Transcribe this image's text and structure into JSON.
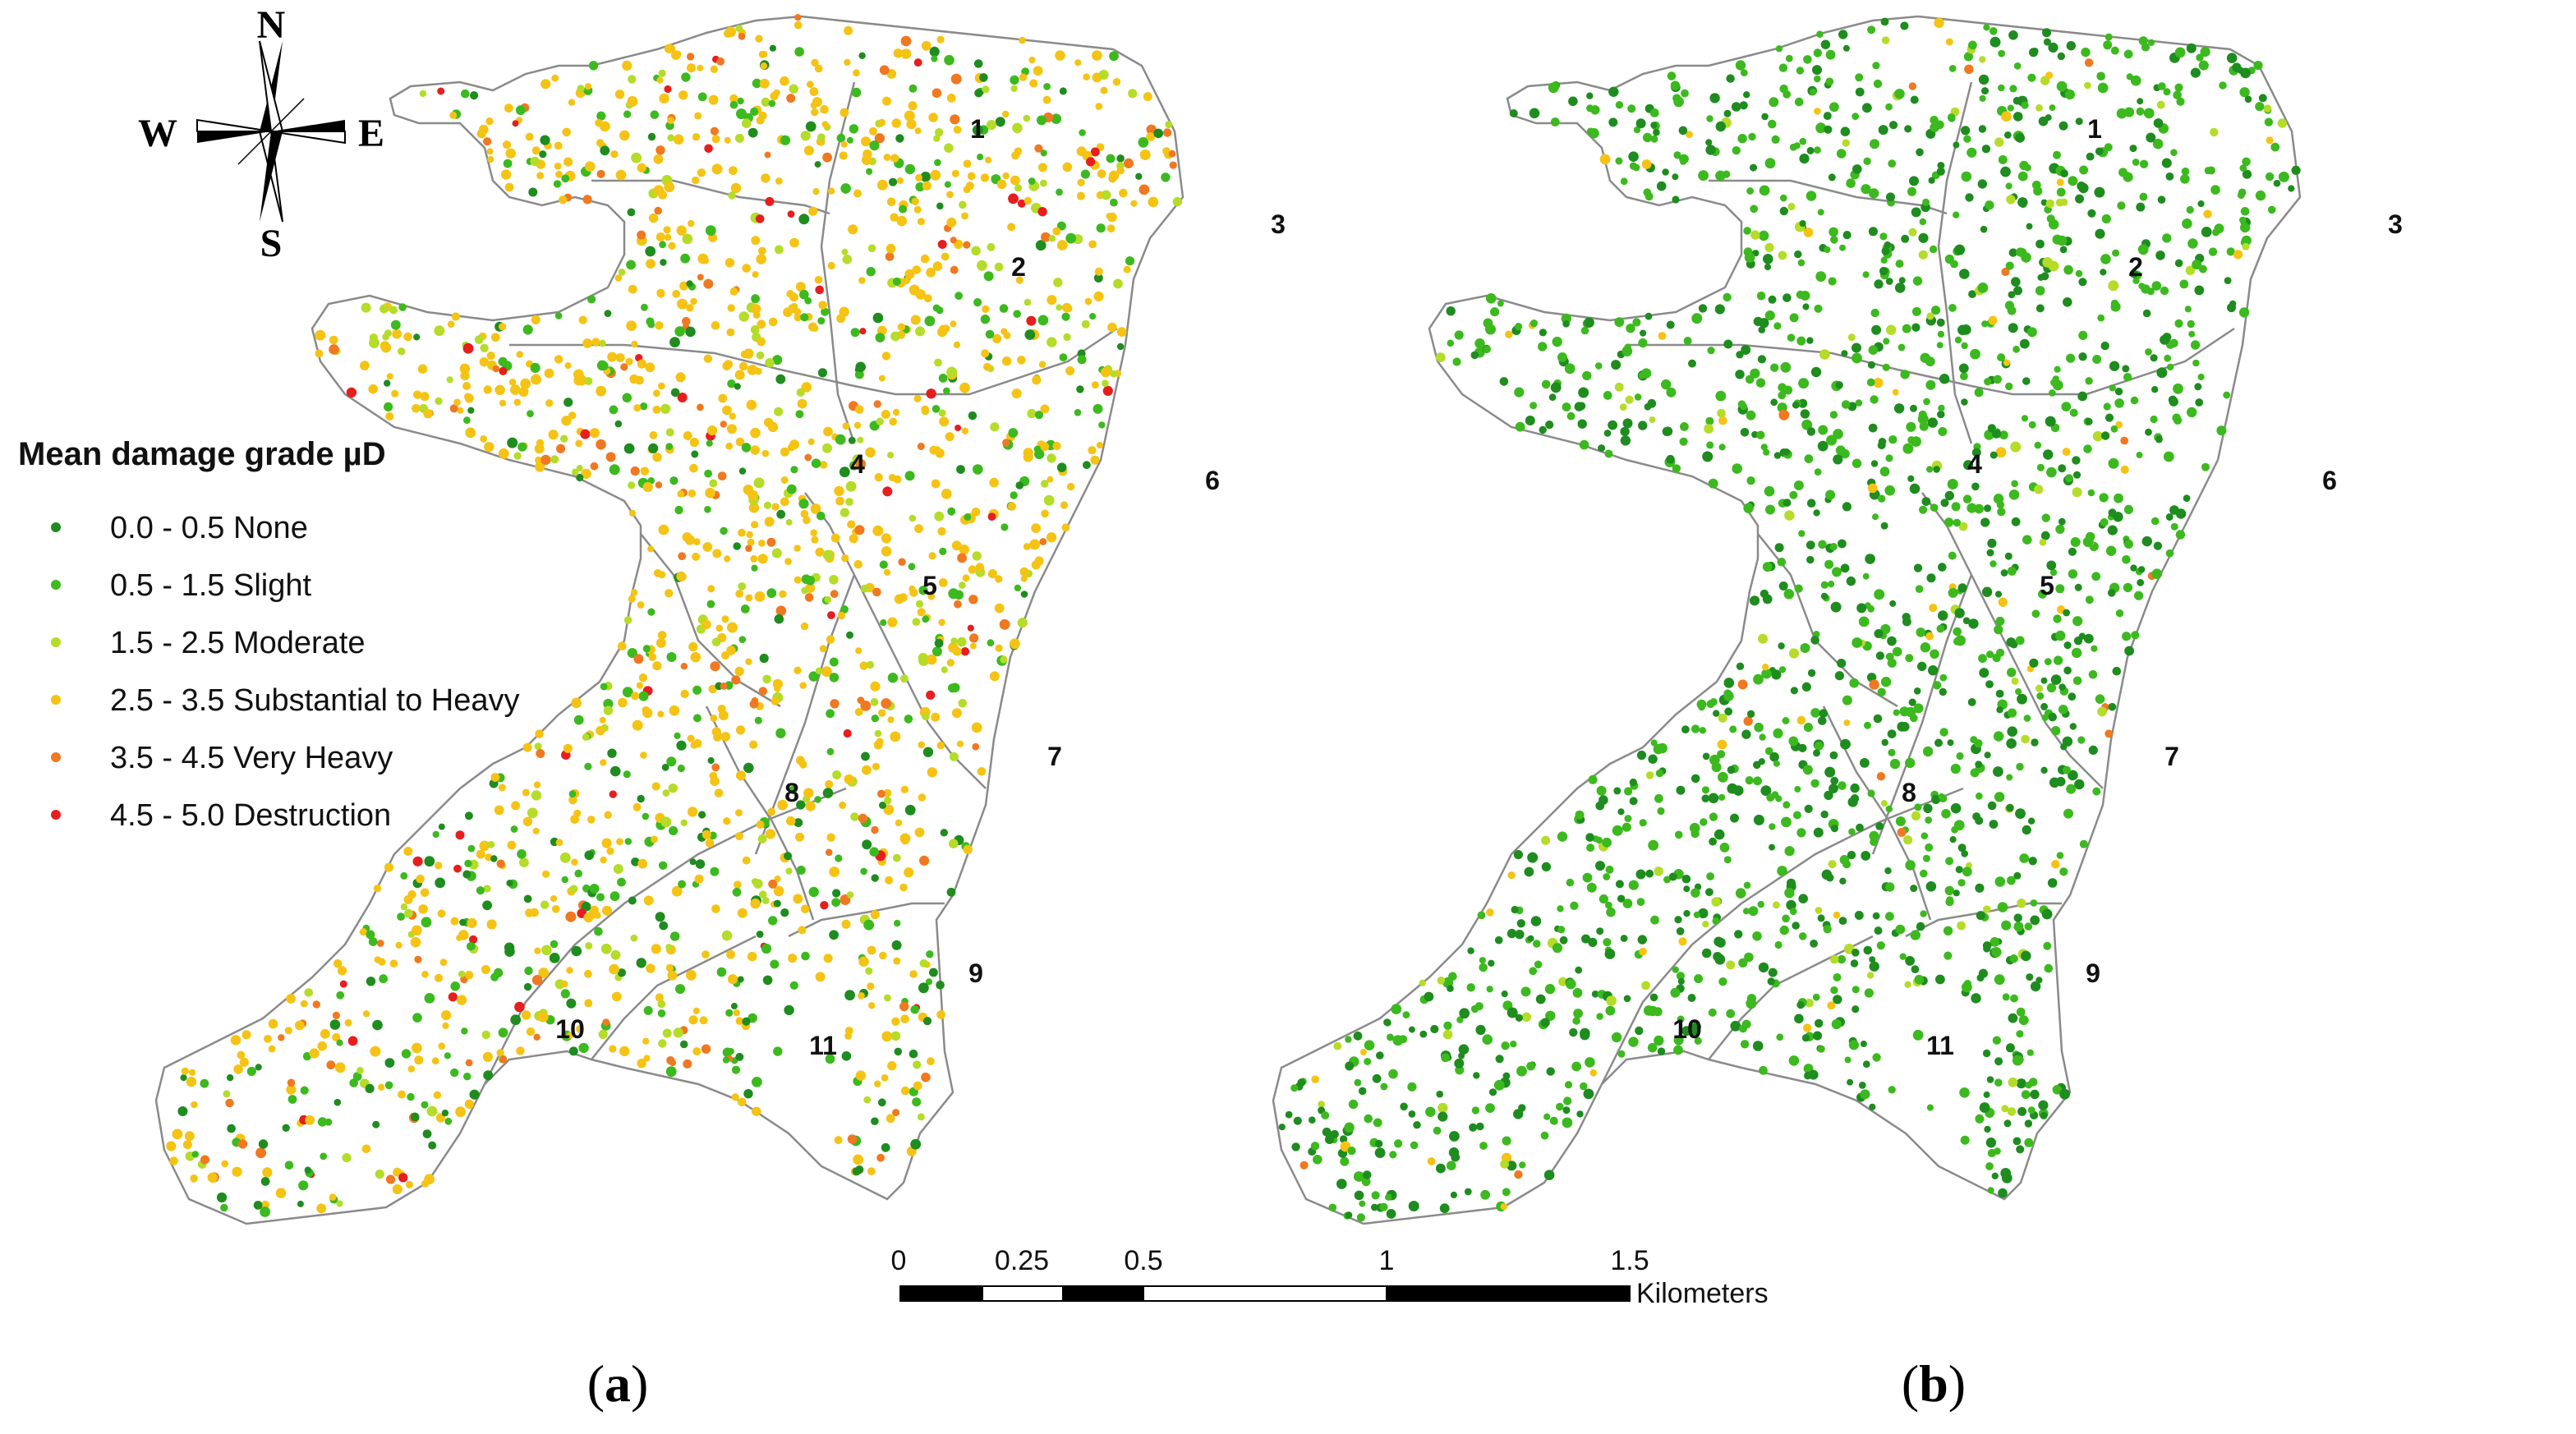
{
  "compass": {
    "north": "N",
    "south": "S",
    "east": "E",
    "west": "W"
  },
  "legend": {
    "title": "Mean damage grade µD",
    "items": [
      {
        "label": "0.0 - 0.5 None",
        "color": "#1e8c1e"
      },
      {
        "label": "0.5 - 1.5 Slight",
        "color": "#3cb91e"
      },
      {
        "label": "1.5 - 2.5 Moderate",
        "color": "#b4dc28"
      },
      {
        "label": "2.5 - 3.5 Substantial to Heavy",
        "color": "#f5c314"
      },
      {
        "label": "3.5 - 4.5 Very Heavy",
        "color": "#f07820"
      },
      {
        "label": "4.5 - 5.0 Destruction",
        "color": "#e61e1e"
      }
    ]
  },
  "zones": [
    "1",
    "2",
    "3",
    "4",
    "5",
    "6",
    "7",
    "8",
    "9",
    "10",
    "11"
  ],
  "scale_bar": {
    "ticks": [
      "0",
      "0.25",
      "0.5",
      "1",
      "1.5"
    ],
    "unit": "Kilometers"
  },
  "panels": [
    {
      "caption_open": "(",
      "caption_letter": "a",
      "caption_close": ")",
      "dominant_grade": "2.5 - 3.5 Substantial to Heavy"
    },
    {
      "caption_open": "(",
      "caption_letter": "b",
      "caption_close": ")",
      "dominant_grade": "0.5 - 1.5 Slight"
    }
  ]
}
